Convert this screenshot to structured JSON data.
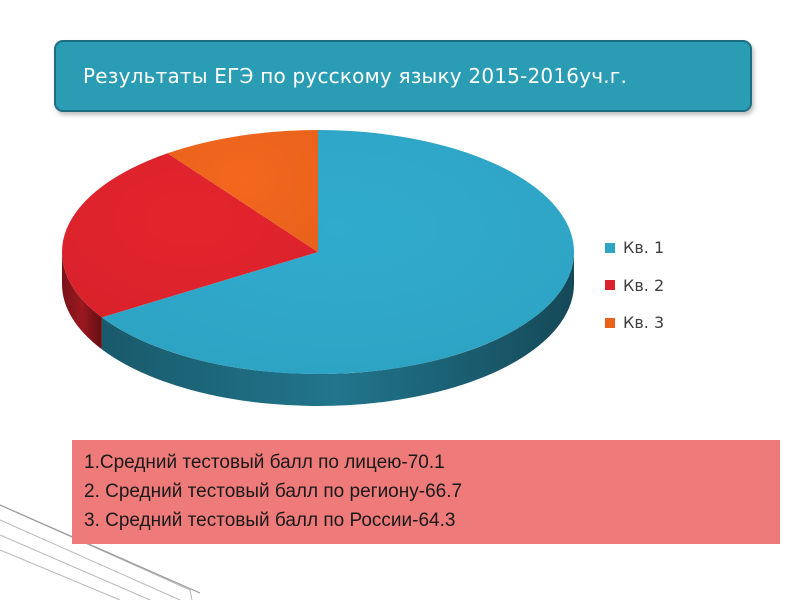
{
  "header": {
    "title": "Результаты ЕГЭ по русскому языку 2015-2016уч.г."
  },
  "chart_data": {
    "type": "pie",
    "style": "3d",
    "categories": [
      "Кв. 1",
      "Кв. 2",
      "Кв. 3"
    ],
    "values": [
      66,
      24,
      10
    ],
    "colors": [
      "#2ea3c3",
      "#d9222b",
      "#e8621c"
    ],
    "legend_position": "right"
  },
  "notes": {
    "lines": [
      "1.Средний тестовый балл по лицею-70.1",
      "2. Средний тестовый балл по региону-66.7",
      "3. Средний тестовый балл по России-64.3"
    ]
  }
}
